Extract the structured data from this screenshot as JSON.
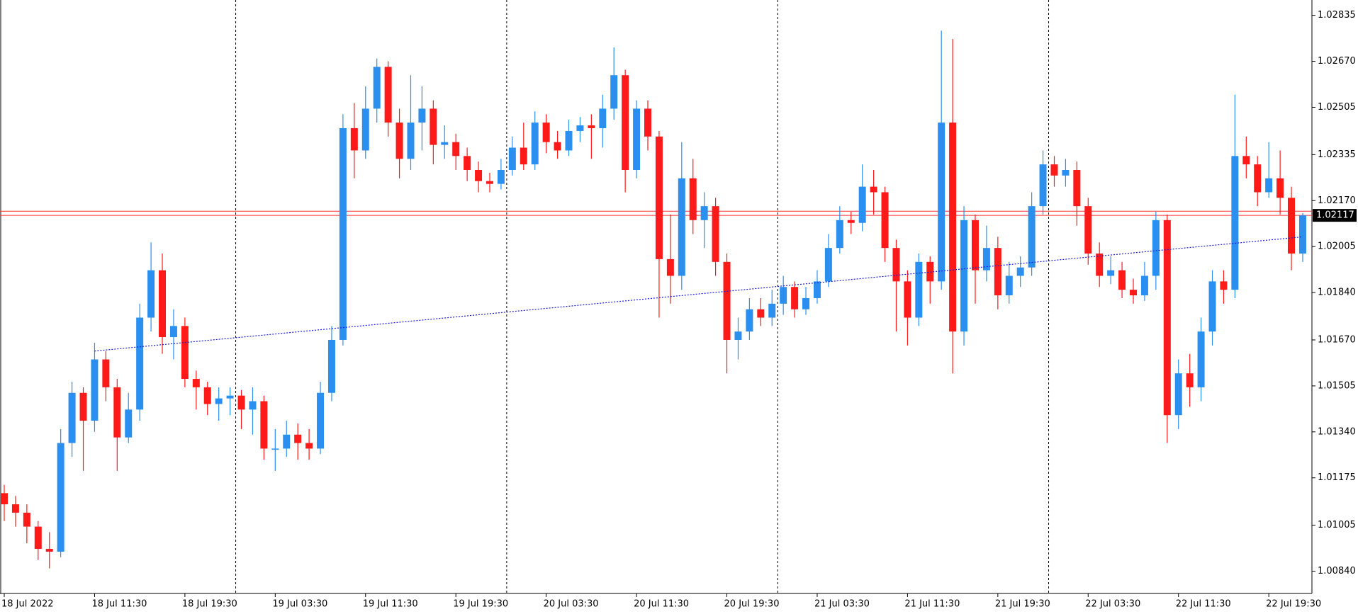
{
  "chart_data": {
    "type": "candlestick",
    "categories": [
      "18 Jul 2022",
      null,
      null,
      null,
      null,
      null,
      null,
      null,
      "18 Jul 11:30",
      null,
      null,
      null,
      null,
      null,
      null,
      null,
      "18 Jul 19:30",
      null,
      null,
      null,
      null,
      null,
      null,
      null,
      "19 Jul 03:30",
      null,
      null,
      null,
      null,
      null,
      null,
      null,
      "19 Jul 11:30",
      null,
      null,
      null,
      null,
      null,
      null,
      null,
      "19 Jul 19:30",
      null,
      null,
      null,
      null,
      null,
      null,
      null,
      "20 Jul 03:30",
      null,
      null,
      null,
      null,
      null,
      null,
      null,
      "20 Jul 11:30",
      null,
      null,
      null,
      null,
      null,
      null,
      null,
      "20 Jul 19:30",
      null,
      null,
      null,
      null,
      null,
      null,
      null,
      "21 Jul 03:30",
      null,
      null,
      null,
      null,
      null,
      null,
      null,
      "21 Jul 11:30",
      null,
      null,
      null,
      null,
      null,
      null,
      null,
      "21 Jul 19:30",
      null,
      null,
      null,
      null,
      null,
      null,
      null,
      "22 Jul 03:30",
      null,
      null,
      null,
      null,
      null,
      null,
      null,
      "22 Jul 11:30",
      null,
      null,
      null,
      null,
      null,
      null,
      null,
      "22 Jul 19:30",
      null,
      null,
      null
    ],
    "ohlc": [
      [
        1.0112,
        1.0115,
        1.0102,
        1.0108
      ],
      [
        1.0108,
        1.0111,
        1.01,
        1.0105
      ],
      [
        1.0105,
        1.0108,
        1.0094,
        1.01
      ],
      [
        1.01,
        1.0102,
        1.0088,
        1.0092
      ],
      [
        1.0092,
        1.0098,
        1.0085,
        1.0091
      ],
      [
        1.0091,
        1.0135,
        1.0089,
        1.013
      ],
      [
        1.013,
        1.0152,
        1.0125,
        1.0148
      ],
      [
        1.0148,
        1.015,
        1.012,
        1.0138
      ],
      [
        1.0138,
        1.0166,
        1.0134,
        1.016
      ],
      [
        1.016,
        1.0163,
        1.0145,
        1.015
      ],
      [
        1.015,
        1.0153,
        1.012,
        1.0132
      ],
      [
        1.0132,
        1.0148,
        1.013,
        1.0142
      ],
      [
        1.0142,
        1.018,
        1.0138,
        1.0175
      ],
      [
        1.0175,
        1.0202,
        1.017,
        1.0192
      ],
      [
        1.0192,
        1.0198,
        1.0162,
        1.0168
      ],
      [
        1.0168,
        1.0178,
        1.016,
        1.0172
      ],
      [
        1.0172,
        1.0175,
        1.015,
        1.0153
      ],
      [
        1.0153,
        1.0156,
        1.0142,
        1.015
      ],
      [
        1.015,
        1.0152,
        1.014,
        1.0144
      ],
      [
        1.0144,
        1.015,
        1.0138,
        1.0146
      ],
      [
        1.0146,
        1.015,
        1.014,
        1.0147
      ],
      [
        1.0147,
        1.0149,
        1.0135,
        1.0142
      ],
      [
        1.0142,
        1.015,
        1.0133,
        1.0145
      ],
      [
        1.0145,
        1.0147,
        1.0124,
        1.0128
      ],
      [
        1.0128,
        1.0135,
        1.012,
        1.0128
      ],
      [
        1.0128,
        1.0138,
        1.0125,
        1.0133
      ],
      [
        1.0133,
        1.0137,
        1.0124,
        1.013
      ],
      [
        1.013,
        1.0135,
        1.0124,
        1.0128
      ],
      [
        1.0128,
        1.0152,
        1.0126,
        1.0148
      ],
      [
        1.0148,
        1.0172,
        1.0145,
        1.0167
      ],
      [
        1.0167,
        1.0248,
        1.0165,
        1.0243
      ],
      [
        1.0243,
        1.0252,
        1.0225,
        1.0235
      ],
      [
        1.0235,
        1.0258,
        1.0232,
        1.025
      ],
      [
        1.025,
        1.0268,
        1.0245,
        1.0265
      ],
      [
        1.0265,
        1.0267,
        1.024,
        1.0245
      ],
      [
        1.0245,
        1.025,
        1.0225,
        1.0232
      ],
      [
        1.0232,
        1.0262,
        1.0228,
        1.0245
      ],
      [
        1.0245,
        1.0258,
        1.0235,
        1.025
      ],
      [
        1.025,
        1.0253,
        1.023,
        1.0237
      ],
      [
        1.0237,
        1.0244,
        1.0232,
        1.0238
      ],
      [
        1.0238,
        1.0241,
        1.0228,
        1.0233
      ],
      [
        1.0233,
        1.0236,
        1.0224,
        1.0228
      ],
      [
        1.0228,
        1.0231,
        1.022,
        1.0224
      ],
      [
        1.0224,
        1.0227,
        1.022,
        1.0223
      ],
      [
        1.0223,
        1.0232,
        1.0221,
        1.0228
      ],
      [
        1.0228,
        1.024,
        1.0226,
        1.0236
      ],
      [
        1.0236,
        1.0245,
        1.0228,
        1.023
      ],
      [
        1.023,
        1.0249,
        1.0228,
        1.0245
      ],
      [
        1.0245,
        1.0248,
        1.0234,
        1.0238
      ],
      [
        1.0238,
        1.0242,
        1.0232,
        1.0235
      ],
      [
        1.0235,
        1.0246,
        1.0233,
        1.0242
      ],
      [
        1.0242,
        1.0247,
        1.0238,
        1.0244
      ],
      [
        1.0244,
        1.0248,
        1.0232,
        1.0243
      ],
      [
        1.0243,
        1.0255,
        1.0236,
        1.025
      ],
      [
        1.025,
        1.0272,
        1.0246,
        1.0262
      ],
      [
        1.0262,
        1.0264,
        1.022,
        1.0228
      ],
      [
        1.0228,
        1.0253,
        1.0225,
        1.025
      ],
      [
        1.025,
        1.0253,
        1.0235,
        1.024
      ],
      [
        1.024,
        1.0242,
        1.0175,
        1.0196
      ],
      [
        1.0196,
        1.0212,
        1.018,
        1.019
      ],
      [
        1.019,
        1.0238,
        1.0185,
        1.0225
      ],
      [
        1.0225,
        1.0232,
        1.0205,
        1.021
      ],
      [
        1.021,
        1.022,
        1.02,
        1.0215
      ],
      [
        1.0215,
        1.0218,
        1.019,
        1.0195
      ],
      [
        1.0195,
        1.0198,
        1.0155,
        1.0167
      ],
      [
        1.0167,
        1.0175,
        1.016,
        1.017
      ],
      [
        1.017,
        1.0182,
        1.0167,
        1.0178
      ],
      [
        1.0178,
        1.0182,
        1.0172,
        1.0175
      ],
      [
        1.0175,
        1.0185,
        1.0172,
        1.018
      ],
      [
        1.018,
        1.019,
        1.0176,
        1.0186
      ],
      [
        1.0186,
        1.0188,
        1.0175,
        1.0178
      ],
      [
        1.0178,
        1.0186,
        1.0176,
        1.0182
      ],
      [
        1.0182,
        1.0192,
        1.018,
        1.0188
      ],
      [
        1.0188,
        1.0205,
        1.0186,
        1.02
      ],
      [
        1.02,
        1.0215,
        1.0198,
        1.021
      ],
      [
        1.021,
        1.0213,
        1.0205,
        1.0209
      ],
      [
        1.0209,
        1.023,
        1.0206,
        1.0222
      ],
      [
        1.0222,
        1.0228,
        1.0212,
        1.022
      ],
      [
        1.022,
        1.0222,
        1.0195,
        1.02
      ],
      [
        1.02,
        1.0203,
        1.017,
        1.0188
      ],
      [
        1.0188,
        1.0192,
        1.0165,
        1.0175
      ],
      [
        1.0175,
        1.0198,
        1.0172,
        1.0195
      ],
      [
        1.0195,
        1.0197,
        1.018,
        1.0188
      ],
      [
        1.0188,
        1.0278,
        1.0185,
        1.0245
      ],
      [
        1.0245,
        1.0275,
        1.0155,
        1.017
      ],
      [
        1.017,
        1.0215,
        1.0165,
        1.021
      ],
      [
        1.021,
        1.0212,
        1.018,
        1.0192
      ],
      [
        1.0192,
        1.0208,
        1.0188,
        1.02
      ],
      [
        1.02,
        1.0204,
        1.0178,
        1.0183
      ],
      [
        1.0183,
        1.0195,
        1.018,
        1.019
      ],
      [
        1.019,
        1.0197,
        1.0186,
        1.0193
      ],
      [
        1.0193,
        1.022,
        1.019,
        1.0215
      ],
      [
        1.0215,
        1.0235,
        1.0212,
        1.023
      ],
      [
        1.023,
        1.0233,
        1.0222,
        1.0226
      ],
      [
        1.0226,
        1.0232,
        1.0222,
        1.0228
      ],
      [
        1.0228,
        1.0231,
        1.0208,
        1.0215
      ],
      [
        1.0215,
        1.0218,
        1.0194,
        1.0198
      ],
      [
        1.0198,
        1.0202,
        1.0186,
        1.019
      ],
      [
        1.019,
        1.0197,
        1.0187,
        1.0192
      ],
      [
        1.0192,
        1.0195,
        1.0182,
        1.0185
      ],
      [
        1.0185,
        1.0189,
        1.018,
        1.0183
      ],
      [
        1.0183,
        1.0195,
        1.0181,
        1.019
      ],
      [
        1.019,
        1.0213,
        1.0185,
        1.021
      ],
      [
        1.021,
        1.0212,
        1.013,
        1.014
      ],
      [
        1.014,
        1.016,
        1.0135,
        1.0155
      ],
      [
        1.0155,
        1.0162,
        1.0143,
        1.015
      ],
      [
        1.015,
        1.0175,
        1.0145,
        1.017
      ],
      [
        1.017,
        1.0192,
        1.0165,
        1.0188
      ],
      [
        1.0188,
        1.0192,
        1.018,
        1.0185
      ],
      [
        1.0185,
        1.0255,
        1.0182,
        1.0233
      ],
      [
        1.0233,
        1.024,
        1.0225,
        1.023
      ],
      [
        1.023,
        1.0233,
        1.0215,
        1.022
      ],
      [
        1.022,
        1.0238,
        1.0218,
        1.0225
      ],
      [
        1.0225,
        1.0235,
        1.0212,
        1.0218
      ],
      [
        1.0218,
        1.0222,
        1.0192,
        1.0198
      ],
      [
        1.0198,
        1.02125,
        1.0195,
        1.02117
      ]
    ],
    "up_color": "#2b8ff0",
    "down_color": "#ff1a1a",
    "ylim": [
      1.0076,
      1.0289
    ],
    "yticks": [
      1.02835,
      {
        "value": 1.0267,
        "label": "1.02670"
      },
      1.02505,
      1.02335,
      {
        "value": 1.0217,
        "label": "1.02170"
      },
      1.02005,
      {
        "value": 1.0184,
        "label": "1.01840"
      },
      {
        "value": 1.0167,
        "label": "1.01670"
      },
      1.01505,
      {
        "value": 1.0134,
        "label": "1.01340"
      },
      1.01175,
      1.01005,
      {
        "value": 1.0084,
        "label": "1.00840"
      }
    ],
    "ask": 1.02132,
    "bid": 1.02117,
    "price_line_color": "#ff3030",
    "trendline": {
      "x": [
        8,
        115
      ],
      "y": [
        1.0163,
        1.0204
      ],
      "color": "#1a1ae0"
    }
  }
}
